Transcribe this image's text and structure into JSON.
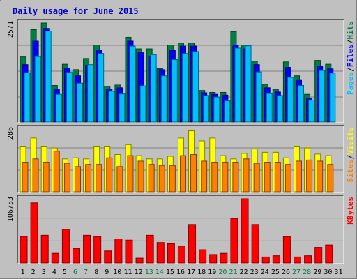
{
  "chart_data": [
    {
      "type": "bar",
      "title": "Daily usage for June 2015",
      "categories": [
        "1",
        "2",
        "3",
        "4",
        "5",
        "6",
        "7",
        "8",
        "9",
        "10",
        "11",
        "12",
        "13",
        "14",
        "15",
        "16",
        "17",
        "18",
        "19",
        "20",
        "21",
        "22",
        "23",
        "24",
        "25",
        "26",
        "27",
        "28",
        "29",
        "30",
        "31"
      ],
      "weekend_days": [
        "6",
        "7",
        "13",
        "14",
        "20",
        "21",
        "27",
        "28"
      ],
      "ylabel_max": "2571",
      "ylim": [
        0,
        2571
      ],
      "right_label_parts": [
        "Pages",
        "Files",
        "Hits"
      ],
      "series": [
        {
          "name": "Hits",
          "color": "#008040",
          "values": [
            1690,
            2400,
            2571,
            950,
            1500,
            1360,
            1650,
            2000,
            930,
            960,
            2200,
            1900,
            1900,
            1390,
            2000,
            2050,
            2050,
            820,
            770,
            770,
            2350,
            2000,
            1580,
            980,
            840,
            1560,
            1200,
            720,
            1600,
            1500,
            0
          ]
        },
        {
          "name": "Files",
          "color": "#0000ff",
          "values": [
            1490,
            2100,
            2430,
            860,
            1400,
            1200,
            1470,
            1870,
            860,
            890,
            2100,
            1800,
            1700,
            1360,
            1860,
            1970,
            1970,
            760,
            720,
            700,
            2000,
            1900,
            1490,
            890,
            780,
            1420,
            1100,
            620,
            1450,
            1380,
            0
          ]
        },
        {
          "name": "Pages",
          "color": "#00c0ff",
          "values": [
            1280,
            1700,
            2360,
            720,
            1290,
            1010,
            1490,
            1780,
            800,
            730,
            1970,
            940,
            1750,
            1200,
            1620,
            1780,
            1830,
            690,
            650,
            550,
            1920,
            1980,
            1300,
            740,
            690,
            1160,
            950,
            570,
            1340,
            1270,
            0
          ]
        }
      ]
    },
    {
      "type": "bar",
      "categories": [
        "1",
        "2",
        "3",
        "4",
        "5",
        "6",
        "7",
        "8",
        "9",
        "10",
        "11",
        "12",
        "13",
        "14",
        "15",
        "16",
        "17",
        "18",
        "19",
        "20",
        "21",
        "22",
        "23",
        "24",
        "25",
        "26",
        "27",
        "28",
        "29",
        "30",
        "31"
      ],
      "ylabel_max": "286",
      "ylim": [
        0,
        286
      ],
      "right_label_parts": [
        "Sites",
        "Visits"
      ],
      "series": [
        {
          "name": "Visits",
          "color": "#ffff00",
          "values": [
            205,
            245,
            205,
            200,
            150,
            155,
            150,
            205,
            205,
            170,
            215,
            165,
            150,
            150,
            162,
            245,
            278,
            232,
            245,
            165,
            150,
            175,
            195,
            180,
            180,
            155,
            205,
            200,
            172,
            165,
            0
          ]
        },
        {
          "name": "Sites",
          "color": "#ff8000",
          "values": [
            135,
            150,
            135,
            185,
            130,
            115,
            125,
            125,
            155,
            115,
            165,
            140,
            125,
            120,
            120,
            165,
            170,
            140,
            135,
            135,
            135,
            150,
            130,
            135,
            135,
            125,
            140,
            145,
            140,
            125,
            0
          ]
        }
      ]
    },
    {
      "type": "bar",
      "categories": [
        "1",
        "2",
        "3",
        "4",
        "5",
        "6",
        "7",
        "8",
        "9",
        "10",
        "11",
        "12",
        "13",
        "14",
        "15",
        "16",
        "17",
        "18",
        "19",
        "20",
        "21",
        "22",
        "23",
        "24",
        "25",
        "26",
        "27",
        "28",
        "29",
        "30",
        "31"
      ],
      "ylabel_max": "106753",
      "ylim": [
        0,
        106753
      ],
      "right_label_parts": [
        "KBytes"
      ],
      "series": [
        {
          "name": "KBytes",
          "color": "#ff0000",
          "values": [
            44000,
            100000,
            46000,
            16000,
            56000,
            24000,
            46000,
            44000,
            20000,
            40000,
            38000,
            8000,
            46000,
            34000,
            32000,
            28000,
            64000,
            22000,
            14000,
            16000,
            74000,
            106753,
            64000,
            10000,
            12000,
            44000,
            10000,
            12000,
            26000,
            30000,
            0
          ]
        }
      ]
    }
  ]
}
